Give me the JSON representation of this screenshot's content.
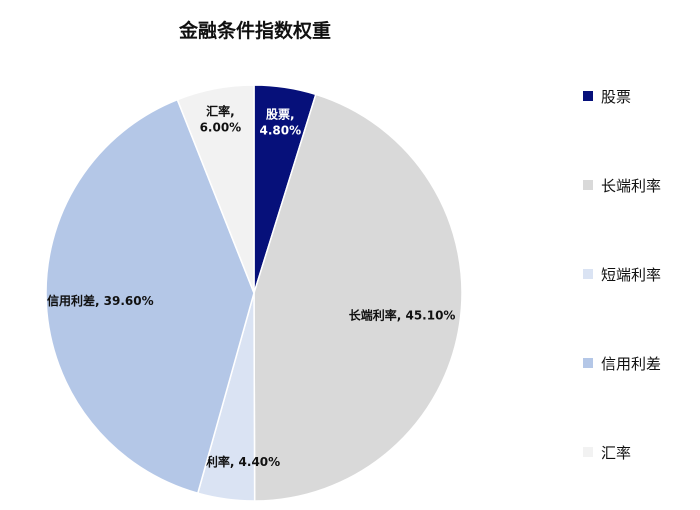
{
  "title": "金融条件指数权重",
  "chart_data": {
    "type": "pie",
    "title": "金融条件指数权重",
    "legend_position": "right",
    "slices": [
      {
        "label": "股票",
        "value": 4.8,
        "display": "4.80%",
        "color": "#06107a",
        "text_color": "#ffffff"
      },
      {
        "label": "长端利率",
        "value": 45.1,
        "display": "45.10%",
        "color": "#d9d9d9",
        "text_color": "#111111"
      },
      {
        "label": "短端利率",
        "value": 4.4,
        "display": "4.40%",
        "color": "#dae3f3",
        "text_color": "#111111"
      },
      {
        "label": "信用利差",
        "value": 39.6,
        "display": "39.60%",
        "color": "#b4c7e7",
        "text_color": "#111111"
      },
      {
        "label": "汇率",
        "value": 6.0,
        "display": "6.00%",
        "color": "#f2f2f2",
        "text_color": "#111111"
      }
    ]
  }
}
